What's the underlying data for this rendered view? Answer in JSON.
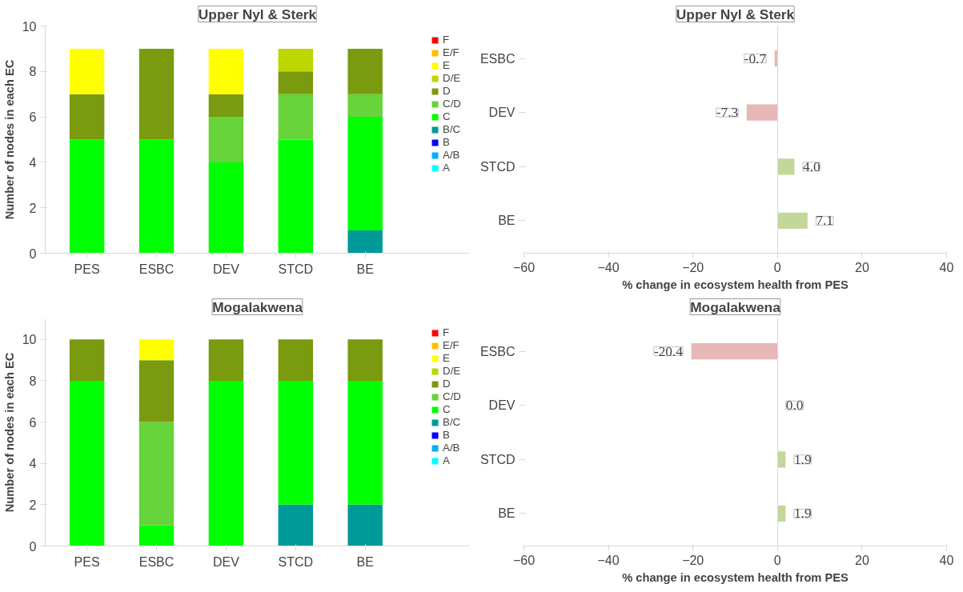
{
  "chart_data": [
    {
      "type": "bar",
      "title": "Upper Nyl & Sterk",
      "ylabel": "Number of nodes in each EC",
      "categories": [
        "PES",
        "ESBC",
        "DEV",
        "STCD",
        "BE"
      ],
      "stacked": true,
      "ylim": [
        0,
        10
      ],
      "yticks": [
        0,
        2,
        4,
        6,
        8,
        10
      ],
      "legend": "right",
      "series": [
        {
          "name": "A",
          "color": "#00ffff",
          "values": [
            0,
            0,
            0,
            0,
            0
          ]
        },
        {
          "name": "A/B",
          "color": "#00b0f0",
          "values": [
            0,
            0,
            0,
            0,
            0
          ]
        },
        {
          "name": "B",
          "color": "#0000ff",
          "values": [
            0,
            0,
            0,
            0,
            0
          ]
        },
        {
          "name": "B/C",
          "color": "#009999",
          "values": [
            0,
            0,
            0,
            0,
            1
          ]
        },
        {
          "name": "C",
          "color": "#00ff00",
          "values": [
            5,
            5,
            4,
            5,
            5
          ]
        },
        {
          "name": "C/D",
          "color": "#66d43a",
          "values": [
            0,
            0,
            2,
            2,
            1
          ]
        },
        {
          "name": "D",
          "color": "#7a9a0f",
          "values": [
            2,
            4,
            1,
            1,
            2
          ]
        },
        {
          "name": "D/E",
          "color": "#bcd600",
          "values": [
            0,
            0,
            0,
            1,
            0
          ]
        },
        {
          "name": "E",
          "color": "#ffff00",
          "values": [
            2,
            0,
            2,
            0,
            0
          ]
        },
        {
          "name": "E/F",
          "color": "#ffc000",
          "values": [
            0,
            0,
            0,
            0,
            0
          ]
        },
        {
          "name": "F",
          "color": "#ff0000",
          "values": [
            0,
            0,
            0,
            0,
            0
          ]
        }
      ]
    },
    {
      "type": "bar",
      "orientation": "horizontal",
      "title": "Upper Nyl & Sterk",
      "xlabel": "% change in ecosystem health from PES",
      "categories": [
        "ESBC",
        "DEV",
        "STCD",
        "BE"
      ],
      "values": [
        -0.7,
        -7.3,
        4.0,
        7.1
      ],
      "value_labels": [
        "-0.7",
        "-7.3",
        "4.0",
        "7.1"
      ],
      "colors": [
        "#e6b8b7",
        "#e6b8b7",
        "#c4d79b",
        "#c4d79b"
      ],
      "xlim": [
        -60,
        40
      ],
      "xticks": [
        -60,
        -40,
        -20,
        0,
        20,
        40
      ]
    },
    {
      "type": "bar",
      "title": "Mogalakwena",
      "ylabel": "Number of nodes in each EC",
      "categories": [
        "PES",
        "ESBC",
        "DEV",
        "STCD",
        "BE"
      ],
      "stacked": true,
      "ylim": [
        0,
        11
      ],
      "yticks": [
        0,
        2,
        4,
        6,
        8,
        10
      ],
      "legend": "right",
      "series": [
        {
          "name": "A",
          "color": "#00ffff",
          "values": [
            0,
            0,
            0,
            0,
            0
          ]
        },
        {
          "name": "A/B",
          "color": "#00b0f0",
          "values": [
            0,
            0,
            0,
            0,
            0
          ]
        },
        {
          "name": "B",
          "color": "#0000ff",
          "values": [
            0,
            0,
            0,
            0,
            0
          ]
        },
        {
          "name": "B/C",
          "color": "#009999",
          "values": [
            0,
            0,
            0,
            2,
            2
          ]
        },
        {
          "name": "C",
          "color": "#00ff00",
          "values": [
            8,
            1,
            8,
            6,
            6
          ]
        },
        {
          "name": "C/D",
          "color": "#66d43a",
          "values": [
            0,
            5,
            0,
            0,
            0
          ]
        },
        {
          "name": "D",
          "color": "#7a9a0f",
          "values": [
            2,
            3,
            2,
            2,
            2
          ]
        },
        {
          "name": "D/E",
          "color": "#bcd600",
          "values": [
            0,
            0,
            0,
            0,
            0
          ]
        },
        {
          "name": "E",
          "color": "#ffff00",
          "values": [
            0,
            1,
            0,
            0,
            0
          ]
        },
        {
          "name": "E/F",
          "color": "#ffc000",
          "values": [
            0,
            0,
            0,
            0,
            0
          ]
        },
        {
          "name": "F",
          "color": "#ff0000",
          "values": [
            0,
            0,
            0,
            0,
            0
          ]
        }
      ]
    },
    {
      "type": "bar",
      "orientation": "horizontal",
      "title": "Mogalakwena",
      "xlabel": "% change in ecosystem health from PES",
      "categories": [
        "ESBC",
        "DEV",
        "STCD",
        "BE"
      ],
      "values": [
        -20.4,
        0.0,
        1.9,
        1.9
      ],
      "value_labels": [
        "-20.4",
        "0.0",
        "1.9",
        "1.9"
      ],
      "colors": [
        "#e6b8b7",
        "#e6b8b7",
        "#c4d79b",
        "#c4d79b"
      ],
      "xlim": [
        -60,
        40
      ],
      "xticks": [
        -60,
        -40,
        -20,
        0,
        20,
        40
      ]
    }
  ]
}
